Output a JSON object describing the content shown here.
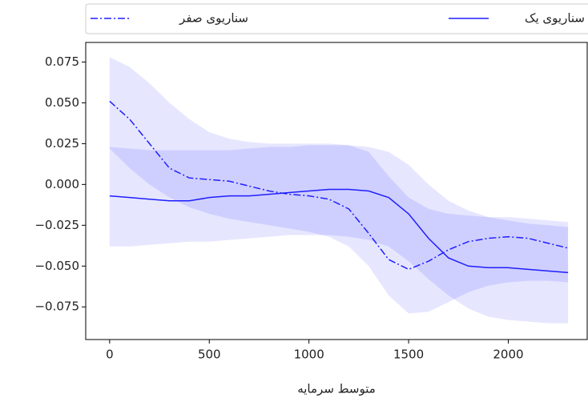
{
  "chart_data": {
    "type": "line",
    "xlabel": "متوسط سرمایه",
    "x": [
      0,
      100,
      200,
      300,
      400,
      500,
      600,
      700,
      800,
      900,
      1000,
      1100,
      1200,
      1300,
      1400,
      1500,
      1600,
      1700,
      1800,
      1900,
      2000,
      2100,
      2200,
      2300
    ],
    "series": [
      {
        "name": "سناریوی صفر",
        "color": "#1f1fff",
        "linestyle": "dashdot",
        "values": [
          0.051,
          0.04,
          0.025,
          0.01,
          0.004,
          0.003,
          0.002,
          -0.001,
          -0.004,
          -0.006,
          -0.007,
          -0.009,
          -0.015,
          -0.03,
          -0.046,
          -0.052,
          -0.047,
          -0.04,
          -0.035,
          -0.033,
          -0.032,
          -0.033,
          -0.036,
          -0.039
        ],
        "upper": [
          0.078,
          0.072,
          0.062,
          0.05,
          0.04,
          0.032,
          0.028,
          0.026,
          0.025,
          0.025,
          0.025,
          0.025,
          0.024,
          0.02,
          0.005,
          -0.008,
          -0.015,
          -0.018,
          -0.019,
          -0.02,
          -0.02,
          -0.021,
          -0.022,
          -0.023
        ],
        "lower": [
          0.022,
          0.01,
          0.0,
          -0.008,
          -0.014,
          -0.018,
          -0.021,
          -0.023,
          -0.025,
          -0.027,
          -0.029,
          -0.032,
          -0.038,
          -0.05,
          -0.068,
          -0.079,
          -0.078,
          -0.072,
          -0.066,
          -0.062,
          -0.06,
          -0.059,
          -0.059,
          -0.06
        ]
      },
      {
        "name": "سناریوی یک",
        "color": "#1f1fff",
        "linestyle": "solid",
        "values": [
          -0.007,
          -0.008,
          -0.009,
          -0.01,
          -0.01,
          -0.008,
          -0.007,
          -0.007,
          -0.006,
          -0.005,
          -0.004,
          -0.003,
          -0.003,
          -0.004,
          -0.008,
          -0.018,
          -0.033,
          -0.045,
          -0.05,
          -0.051,
          -0.051,
          -0.052,
          -0.053,
          -0.054
        ],
        "upper": [
          0.023,
          0.022,
          0.021,
          0.021,
          0.021,
          0.021,
          0.021,
          0.022,
          0.023,
          0.023,
          0.024,
          0.024,
          0.024,
          0.023,
          0.02,
          0.012,
          0.0,
          -0.01,
          -0.016,
          -0.02,
          -0.022,
          -0.024,
          -0.025,
          -0.026
        ],
        "lower": [
          -0.038,
          -0.038,
          -0.037,
          -0.036,
          -0.035,
          -0.035,
          -0.034,
          -0.033,
          -0.032,
          -0.031,
          -0.031,
          -0.031,
          -0.032,
          -0.034,
          -0.038,
          -0.047,
          -0.058,
          -0.068,
          -0.076,
          -0.081,
          -0.083,
          -0.084,
          -0.085,
          -0.085
        ]
      }
    ],
    "xlim": [
      -120,
      2400
    ],
    "xticks": [
      0,
      500,
      1000,
      1500,
      2000
    ],
    "ylim": [
      -0.095,
      0.087
    ],
    "yticks": [
      {
        "value": -0.075,
        "label": "−0.075"
      },
      {
        "value": -0.05,
        "label": "−0.050"
      },
      {
        "value": -0.025,
        "label": "−0.025"
      },
      {
        "value": 0,
        "label": "0.000"
      },
      0.025,
      {
        "value": 0.05,
        "label": "0.050"
      },
      0.075
    ],
    "legend": "top"
  }
}
